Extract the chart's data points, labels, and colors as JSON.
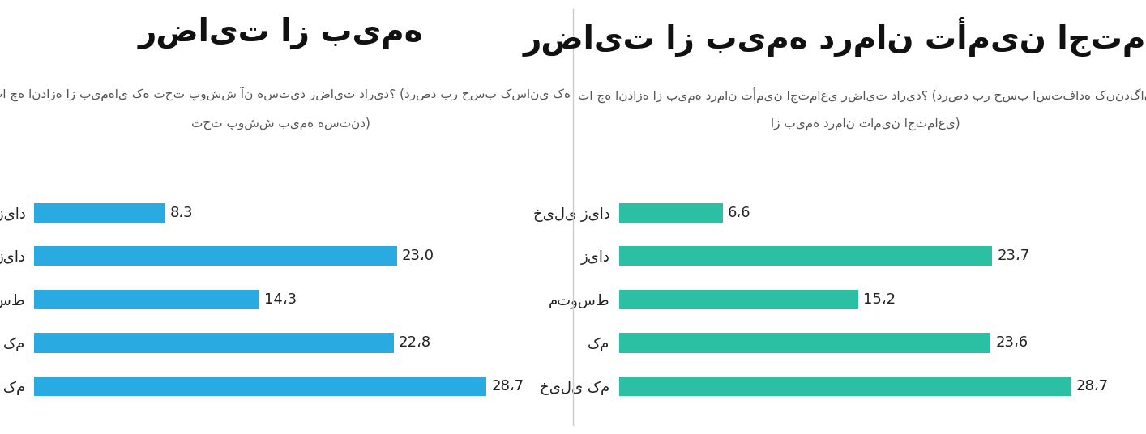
{
  "left_chart": {
    "title": "رضایت از بیمه",
    "subtitle_line1": "تا چه اندازه از بیمهای که تحت پوشش آن هستید رضایت دارید؟ (درصد بر حسب کسانی که",
    "subtitle_line2": "تحت پوشش بیمه هستند)",
    "categories": [
      "خیلی زیاد",
      "زیاد",
      "متوسط",
      "کم",
      "خیلی کم"
    ],
    "values": [
      8.3,
      23.0,
      14.3,
      22.8,
      28.7
    ],
    "labels": [
      "8،3",
      "23،0",
      "14،3",
      "22،8",
      "28،7"
    ],
    "bar_color": "#29ABE2",
    "max_value": 30
  },
  "right_chart": {
    "title": "رضایت از بیمه درمان تأمین اجتماعی",
    "subtitle_line1": "تا چه اندازه از بیمه درمان تأمین اجتماعی رضایت دارید؟ (درصد بر حسب استفاده کنندگان",
    "subtitle_line2": "از بیمه درمان تامین اجتماعی)",
    "categories": [
      "خیلی زیاد",
      "زیاد",
      "متوسط",
      "کم",
      "خیلی کم"
    ],
    "values": [
      6.6,
      23.7,
      15.2,
      23.6,
      28.7
    ],
    "labels": [
      "6،6",
      "23،7",
      "15،2",
      "23،6",
      "28،7"
    ],
    "bar_color": "#2BBFA4",
    "max_value": 30
  },
  "background_color": "#FFFFFF",
  "divider_color": "#CCCCCC",
  "title_fontsize": 28,
  "subtitle_fontsize": 11,
  "label_fontsize": 13,
  "value_fontsize": 13,
  "bar_height": 0.45
}
